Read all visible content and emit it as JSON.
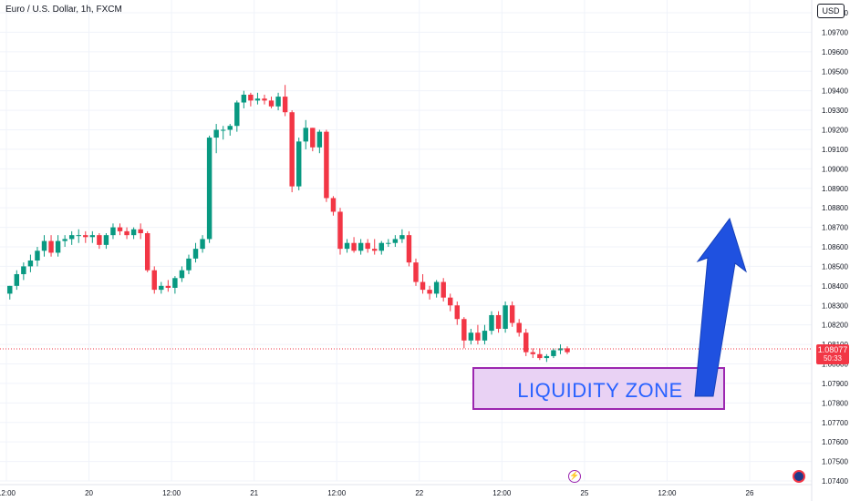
{
  "header": {
    "symbol": "Euro / U.S. Dollar, 1h, FXCM"
  },
  "currency_label": "USD",
  "current_price": {
    "value": "1.08077",
    "countdown": "50:33"
  },
  "annotation": {
    "zone_label": "LIQUIDITY ZONE"
  },
  "colors": {
    "up": "#089981",
    "down": "#f23645",
    "grid": "#f0f3fa",
    "zone_fill": "#e9d2f4",
    "zone_border": "#9c27b0",
    "arrow": "#1f51e0"
  },
  "icons": [
    "lightning-event-icon",
    "flag-icon"
  ],
  "chart_data": {
    "type": "candlestick",
    "title": "Euro / U.S. Dollar, 1h, FXCM",
    "ylim": [
      1.074,
      1.098
    ],
    "y_ticks": [
      "1.09800",
      "1.09700",
      "1.09600",
      "1.09500",
      "1.09400",
      "1.09300",
      "1.09200",
      "1.09100",
      "1.09000",
      "1.08900",
      "1.08800",
      "1.08700",
      "1.08600",
      "1.08500",
      "1.08400",
      "1.08300",
      "1.08200",
      "1.08100",
      "1.08000",
      "1.07900",
      "1.07800",
      "1.07700",
      "1.07600",
      "1.07500",
      "1.07400"
    ],
    "x_ticks": [
      {
        "label": "12:00",
        "x": -0.5
      },
      {
        "label": "20",
        "x": 11.5
      },
      {
        "label": "12:00",
        "x": 23.5
      },
      {
        "label": "21",
        "x": 35.5
      },
      {
        "label": "12:00",
        "x": 47.5
      },
      {
        "label": "22",
        "x": 59.5
      },
      {
        "label": "12:00",
        "x": 71.5
      },
      {
        "label": "25",
        "x": 83.5
      },
      {
        "label": "12:00",
        "x": 95.5
      },
      {
        "label": "26",
        "x": 107.5
      }
    ],
    "x_range": [
      -0.5,
      118.5
    ],
    "candles": [
      [
        1.0836,
        1.084,
        1.0833,
        1.084
      ],
      [
        1.084,
        1.0848,
        1.0838,
        1.0846
      ],
      [
        1.0846,
        1.0852,
        1.0843,
        1.085
      ],
      [
        1.085,
        1.0856,
        1.0847,
        1.0853
      ],
      [
        1.0853,
        1.086,
        1.085,
        1.0858
      ],
      [
        1.0858,
        1.0866,
        1.0855,
        1.0863
      ],
      [
        1.0863,
        1.0866,
        1.0855,
        1.0857
      ],
      [
        1.0857,
        1.0866,
        1.0855,
        1.0863
      ],
      [
        1.0863,
        1.0866,
        1.086,
        1.0864
      ],
      [
        1.0864,
        1.0868,
        1.0861,
        1.0866
      ],
      [
        1.0866,
        1.0869,
        1.0862,
        1.0866
      ],
      [
        1.0866,
        1.0868,
        1.0862,
        1.0865
      ],
      [
        1.0865,
        1.0868,
        1.0862,
        1.0866
      ],
      [
        1.0866,
        1.0867,
        1.0859,
        1.0861
      ],
      [
        1.0861,
        1.0867,
        1.0859,
        1.0866
      ],
      [
        1.0866,
        1.0872,
        1.0864,
        1.087
      ],
      [
        1.087,
        1.0872,
        1.0866,
        1.0868
      ],
      [
        1.0868,
        1.087,
        1.0864,
        1.0866
      ],
      [
        1.0866,
        1.087,
        1.0864,
        1.0869
      ],
      [
        1.0869,
        1.0872,
        1.0864,
        1.0867
      ],
      [
        1.0867,
        1.0868,
        1.0847,
        1.0848
      ],
      [
        1.0848,
        1.085,
        1.0836,
        1.0838
      ],
      [
        1.0838,
        1.0842,
        1.0836,
        1.084
      ],
      [
        1.084,
        1.0843,
        1.0837,
        1.0839
      ],
      [
        1.0839,
        1.0845,
        1.0836,
        1.0844
      ],
      [
        1.0844,
        1.085,
        1.0842,
        1.0848
      ],
      [
        1.0848,
        1.0856,
        1.0846,
        1.0854
      ],
      [
        1.0854,
        1.0862,
        1.0852,
        1.0859
      ],
      [
        1.0859,
        1.0866,
        1.0857,
        1.0864
      ],
      [
        1.0864,
        1.0917,
        1.0862,
        1.0916
      ],
      [
        1.0916,
        1.0923,
        1.0908,
        1.092
      ],
      [
        1.092,
        1.0922,
        1.0915,
        1.092
      ],
      [
        1.092,
        1.0923,
        1.0917,
        1.0922
      ],
      [
        1.0922,
        1.0935,
        1.0919,
        1.0934
      ],
      [
        1.0934,
        1.094,
        1.0931,
        1.0938
      ],
      [
        1.0938,
        1.0939,
        1.0932,
        1.0935
      ],
      [
        1.0935,
        1.0939,
        1.0933,
        1.0936
      ],
      [
        1.0936,
        1.0938,
        1.0933,
        1.0935
      ],
      [
        1.0935,
        1.0937,
        1.0931,
        1.0932
      ],
      [
        1.0932,
        1.0939,
        1.093,
        1.0937
      ],
      [
        1.0937,
        1.0943,
        1.0927,
        1.0929
      ],
      [
        1.0929,
        1.093,
        1.0888,
        1.0891
      ],
      [
        1.0891,
        1.0916,
        1.0889,
        1.0914
      ],
      [
        1.0914,
        1.0925,
        1.091,
        1.0921
      ],
      [
        1.0921,
        1.0921,
        1.0909,
        1.0911
      ],
      [
        1.0911,
        1.092,
        1.0908,
        1.0919
      ],
      [
        1.0919,
        1.092,
        1.0883,
        1.0885
      ],
      [
        1.0885,
        1.0886,
        1.0876,
        1.0878
      ],
      [
        1.0878,
        1.088,
        1.0856,
        1.0859
      ],
      [
        1.0859,
        1.0864,
        1.0857,
        1.0862
      ],
      [
        1.0862,
        1.0865,
        1.0857,
        1.0858
      ],
      [
        1.0858,
        1.0864,
        1.0856,
        1.0862
      ],
      [
        1.0862,
        1.0864,
        1.0857,
        1.0859
      ],
      [
        1.0859,
        1.0864,
        1.0856,
        1.0858
      ],
      [
        1.0858,
        1.0863,
        1.0856,
        1.0862
      ],
      [
        1.0862,
        1.0864,
        1.086,
        1.0862
      ],
      [
        1.0862,
        1.0866,
        1.086,
        1.0864
      ],
      [
        1.0864,
        1.0869,
        1.0862,
        1.0866
      ],
      [
        1.0866,
        1.0868,
        1.085,
        1.0852
      ],
      [
        1.0852,
        1.0854,
        1.084,
        1.0842
      ],
      [
        1.0842,
        1.0846,
        1.0836,
        1.0838
      ],
      [
        1.0838,
        1.084,
        1.0833,
        1.0836
      ],
      [
        1.0836,
        1.0843,
        1.0834,
        1.0842
      ],
      [
        1.0842,
        1.0844,
        1.0832,
        1.0834
      ],
      [
        1.0834,
        1.0836,
        1.0827,
        1.083
      ],
      [
        1.083,
        1.0832,
        1.082,
        1.0823
      ],
      [
        1.0823,
        1.0824,
        1.0808,
        1.0812
      ],
      [
        1.0812,
        1.0818,
        1.081,
        1.0816
      ],
      [
        1.0816,
        1.082,
        1.081,
        1.0812
      ],
      [
        1.0812,
        1.082,
        1.081,
        1.0817
      ],
      [
        1.0817,
        1.0827,
        1.0815,
        1.0825
      ],
      [
        1.0825,
        1.0827,
        1.0816,
        1.0818
      ],
      [
        1.0818,
        1.0832,
        1.0816,
        1.083
      ],
      [
        1.083,
        1.0832,
        1.0819,
        1.0821
      ],
      [
        1.0821,
        1.0823,
        1.0814,
        1.0816
      ],
      [
        1.0816,
        1.0818,
        1.0804,
        1.0806
      ],
      [
        1.0806,
        1.0808,
        1.0803,
        1.0805
      ],
      [
        1.0805,
        1.0808,
        1.0802,
        1.0803
      ],
      [
        1.0803,
        1.0805,
        1.0801,
        1.0804
      ],
      [
        1.0804,
        1.0808,
        1.0803,
        1.0807
      ],
      [
        1.0807,
        1.081,
        1.0805,
        1.0808
      ],
      [
        1.0808,
        1.0809,
        1.0805,
        1.0806
      ]
    ],
    "current_price": 1.08077
  }
}
